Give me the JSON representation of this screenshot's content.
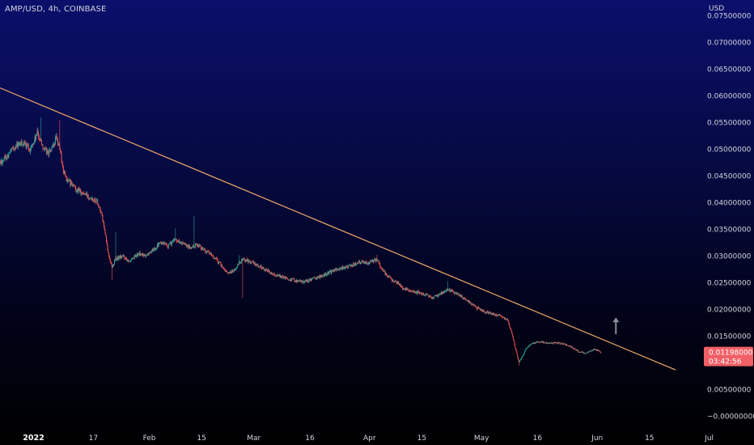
{
  "chart_data": {
    "type": "candlestick",
    "title": "AMP/USD, 4h, COINBASE",
    "currency_label": "USD",
    "y_ticks": [
      "0.07500000",
      "0.07000000",
      "0.06500000",
      "0.06000000",
      "0.05500000",
      "0.05000000",
      "0.04500000",
      "0.04000000",
      "0.03500000",
      "0.03000000",
      "0.02500000",
      "0.02000000",
      "0.01500000",
      "0.00500000",
      "−0.00000000"
    ],
    "y_tick_values": [
      0.075,
      0.07,
      0.065,
      0.06,
      0.055,
      0.05,
      0.045,
      0.04,
      0.035,
      0.03,
      0.025,
      0.02,
      0.015,
      0.005,
      0.0
    ],
    "ylim": [
      -0.0002,
      0.0775
    ],
    "x_ticks": [
      {
        "label": "2022",
        "date": "2022-01-01",
        "bold": true
      },
      {
        "label": "17",
        "date": "2022-01-17"
      },
      {
        "label": "Feb",
        "date": "2022-02-01"
      },
      {
        "label": "15",
        "date": "2022-02-15"
      },
      {
        "label": "Mar",
        "date": "2022-03-01"
      },
      {
        "label": "16",
        "date": "2022-03-16"
      },
      {
        "label": "Apr",
        "date": "2022-04-01"
      },
      {
        "label": "15",
        "date": "2022-04-15"
      },
      {
        "label": "May",
        "date": "2022-05-01"
      },
      {
        "label": "16",
        "date": "2022-05-16"
      },
      {
        "label": "Jun",
        "date": "2022-06-01"
      },
      {
        "label": "15",
        "date": "2022-06-15"
      },
      {
        "label": "Jul",
        "date": "2022-07-01"
      }
    ],
    "xlim": [
      "2021-12-23",
      "2022-07-13"
    ],
    "price_path": [
      [
        "2021-12-23",
        0.0475
      ],
      [
        "2021-12-25",
        0.0488
      ],
      [
        "2021-12-27",
        0.0505
      ],
      [
        "2021-12-29",
        0.0512
      ],
      [
        "2021-12-31",
        0.05
      ],
      [
        "2022-01-01",
        0.0512
      ],
      [
        "2022-01-02",
        0.053
      ],
      [
        "2022-01-03",
        0.0515
      ],
      [
        "2022-01-04",
        0.0498
      ],
      [
        "2022-01-05",
        0.0493
      ],
      [
        "2022-01-06",
        0.05
      ],
      [
        "2022-01-07",
        0.052
      ],
      [
        "2022-01-08",
        0.0503
      ],
      [
        "2022-01-09",
        0.0458
      ],
      [
        "2022-01-10",
        0.0442
      ],
      [
        "2022-01-12",
        0.0428
      ],
      [
        "2022-01-14",
        0.0418
      ],
      [
        "2022-01-16",
        0.0412
      ],
      [
        "2022-01-18",
        0.0403
      ],
      [
        "2022-01-19",
        0.0385
      ],
      [
        "2022-01-20",
        0.035
      ],
      [
        "2022-01-21",
        0.0305
      ],
      [
        "2022-01-22",
        0.028
      ],
      [
        "2022-01-23",
        0.0295
      ],
      [
        "2022-01-25",
        0.03
      ],
      [
        "2022-01-27",
        0.029
      ],
      [
        "2022-01-29",
        0.0305
      ],
      [
        "2022-01-31",
        0.03
      ],
      [
        "2022-02-02",
        0.0312
      ],
      [
        "2022-02-04",
        0.0325
      ],
      [
        "2022-02-06",
        0.0318
      ],
      [
        "2022-02-08",
        0.0332
      ],
      [
        "2022-02-10",
        0.0322
      ],
      [
        "2022-02-12",
        0.0315
      ],
      [
        "2022-02-14",
        0.0322
      ],
      [
        "2022-02-16",
        0.031
      ],
      [
        "2022-02-18",
        0.03
      ],
      [
        "2022-02-20",
        0.0285
      ],
      [
        "2022-02-22",
        0.0268
      ],
      [
        "2022-02-24",
        0.0275
      ],
      [
        "2022-02-26",
        0.0295
      ],
      [
        "2022-02-28",
        0.029
      ],
      [
        "2022-03-02",
        0.0283
      ],
      [
        "2022-03-04",
        0.0275
      ],
      [
        "2022-03-06",
        0.0268
      ],
      [
        "2022-03-08",
        0.0262
      ],
      [
        "2022-03-10",
        0.0258
      ],
      [
        "2022-03-12",
        0.0255
      ],
      [
        "2022-03-14",
        0.0252
      ],
      [
        "2022-03-16",
        0.0255
      ],
      [
        "2022-03-18",
        0.026
      ],
      [
        "2022-03-20",
        0.0265
      ],
      [
        "2022-03-22",
        0.0272
      ],
      [
        "2022-03-24",
        0.0277
      ],
      [
        "2022-03-26",
        0.028
      ],
      [
        "2022-03-28",
        0.0285
      ],
      [
        "2022-03-30",
        0.029
      ],
      [
        "2022-04-01",
        0.0288
      ],
      [
        "2022-04-03",
        0.0293
      ],
      [
        "2022-04-04",
        0.028
      ],
      [
        "2022-04-06",
        0.026
      ],
      [
        "2022-04-08",
        0.0252
      ],
      [
        "2022-04-10",
        0.024
      ],
      [
        "2022-04-12",
        0.0235
      ],
      [
        "2022-04-14",
        0.0232
      ],
      [
        "2022-04-16",
        0.0228
      ],
      [
        "2022-04-18",
        0.0222
      ],
      [
        "2022-04-20",
        0.023
      ],
      [
        "2022-04-22",
        0.0238
      ],
      [
        "2022-04-24",
        0.0232
      ],
      [
        "2022-04-26",
        0.0222
      ],
      [
        "2022-04-28",
        0.0212
      ],
      [
        "2022-04-30",
        0.0202
      ],
      [
        "2022-05-02",
        0.0196
      ],
      [
        "2022-05-04",
        0.0192
      ],
      [
        "2022-05-06",
        0.0188
      ],
      [
        "2022-05-08",
        0.018
      ],
      [
        "2022-05-09",
        0.0158
      ],
      [
        "2022-05-10",
        0.013
      ],
      [
        "2022-05-11",
        0.0102
      ],
      [
        "2022-05-12",
        0.0112
      ],
      [
        "2022-05-13",
        0.0128
      ],
      [
        "2022-05-15",
        0.0138
      ],
      [
        "2022-05-17",
        0.014
      ],
      [
        "2022-05-19",
        0.0137
      ],
      [
        "2022-05-21",
        0.0138
      ],
      [
        "2022-05-23",
        0.0136
      ],
      [
        "2022-05-25",
        0.013
      ],
      [
        "2022-05-27",
        0.0122
      ],
      [
        "2022-05-29",
        0.0118
      ],
      [
        "2022-05-31",
        0.0125
      ],
      [
        "2022-06-01",
        0.0124
      ],
      [
        "2022-06-02",
        0.01198
      ]
    ],
    "spike_highs": [
      [
        "2022-01-03",
        0.056
      ],
      [
        "2022-01-08",
        0.0555
      ],
      [
        "2022-01-23",
        0.0345
      ],
      [
        "2022-02-08",
        0.0352
      ],
      [
        "2022-02-13",
        0.0375
      ],
      [
        "2022-02-25",
        0.0302
      ],
      [
        "2022-04-03",
        0.0303
      ],
      [
        "2022-04-22",
        0.0253
      ]
    ],
    "spike_lows": [
      [
        "2022-01-22",
        0.0255
      ],
      [
        "2022-02-26",
        0.0222
      ],
      [
        "2022-05-11",
        0.0095
      ]
    ],
    "trendline": {
      "start": [
        "2021-12-23",
        0.0615
      ],
      "end": [
        "2022-06-22",
        0.0087
      ],
      "color": "#f0a86a"
    },
    "arrow": {
      "date": "2022-06-06",
      "from": 0.0154,
      "to": 0.0184,
      "color": "#8a8f98"
    },
    "last_price": {
      "value": "0.01198000",
      "countdown": "03:42:56",
      "numeric": 0.01198,
      "color": "#f06066"
    },
    "colors": {
      "up": "#26a69a",
      "down": "#ef5350",
      "text": "#d1d4dc"
    }
  }
}
